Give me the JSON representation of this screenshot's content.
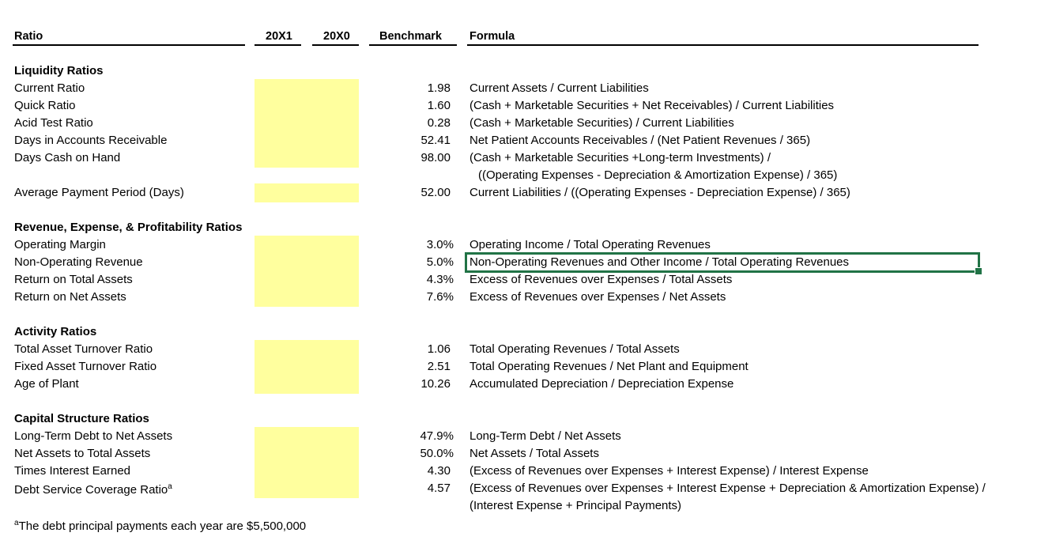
{
  "headers": {
    "ratio": "Ratio",
    "y1": "20X1",
    "y0": "20X0",
    "benchmark": "Benchmark",
    "formula": "Formula"
  },
  "sections": {
    "liquidity": "Liquidity Ratios",
    "revenue": "Revenue, Expense, & Profitability Ratios",
    "activity": "Activity Ratios",
    "capital": "Capital Structure Ratios"
  },
  "rows": [
    {
      "label": "Current Ratio",
      "benchmark": "1.98",
      "formula": "Current Assets / Current Liabilities"
    },
    {
      "label": "Quick Ratio",
      "benchmark": "1.60",
      "formula": "(Cash + Marketable Securities + Net Receivables) / Current Liabilities"
    },
    {
      "label": "Acid Test Ratio",
      "benchmark": "0.28",
      "formula": "(Cash + Marketable Securities) / Current Liabilities"
    },
    {
      "label": "Days in Accounts Receivable",
      "benchmark": "52.41",
      "formula": "Net Patient Accounts Receivables / (Net Patient Revenues / 365)"
    },
    {
      "label": "Days Cash on Hand",
      "benchmark": "98.00",
      "formula": "(Cash + Marketable Securities +Long-term Investments) /",
      "formula2": "((Operating Expenses - Depreciation & Amortization  Expense) / 365)"
    },
    {
      "label": "Average Payment Period (Days)",
      "benchmark": "52.00",
      "formula": "Current Liabilities / ((Operating Expenses - Depreciation Expense) / 365)"
    },
    {
      "label": "Operating Margin",
      "benchmark": "3.0%",
      "formula": "Operating Income / Total Operating Revenues"
    },
    {
      "label": "Non-Operating Revenue",
      "benchmark": "5.0%",
      "formula": "Non-Operating Revenues and Other Income / Total Operating Revenues"
    },
    {
      "label": "Return on Total Assets",
      "benchmark": "4.3%",
      "formula": "Excess of Revenues over Expenses / Total Assets"
    },
    {
      "label": "Return on Net Assets",
      "benchmark": "7.6%",
      "formula": "Excess of Revenues over Expenses / Net Assets"
    },
    {
      "label": "Total Asset Turnover Ratio",
      "benchmark": "1.06",
      "formula": "Total Operating Revenues / Total Assets"
    },
    {
      "label": "Fixed Asset Turnover Ratio",
      "benchmark": "2.51",
      "formula": "Total Operating Revenues / Net Plant and Equipment"
    },
    {
      "label": "Age of Plant",
      "benchmark": "10.26",
      "formula": "Accumulated Depreciation / Depreciation Expense"
    },
    {
      "label": "Long-Term Debt to Net Assets",
      "benchmark": "47.9%",
      "formula": "Long-Term Debt / Net Assets"
    },
    {
      "label": "Net Assets to Total Assets",
      "benchmark": "50.0%",
      "formula": "Net Assets / Total Assets"
    },
    {
      "label": "Times Interest Earned",
      "benchmark": "4.30",
      "formula": "(Excess of Revenues over Expenses + Interest Expense) / Interest Expense"
    },
    {
      "label": "Debt Service Coverage Ratio",
      "label_sup": "a",
      "benchmark": "4.57",
      "formula": "(Excess of Revenues over Expenses + Interest Expense + Depreciation & Amortization Expense) /",
      "formula2": "(Interest Expense + Principal Payments)"
    }
  ],
  "footnote": {
    "mark": "a",
    "text": "The debt principal payments each year are $5,500,000"
  },
  "colors": {
    "input_fill": "#ffff9e",
    "selection": "#217346"
  }
}
